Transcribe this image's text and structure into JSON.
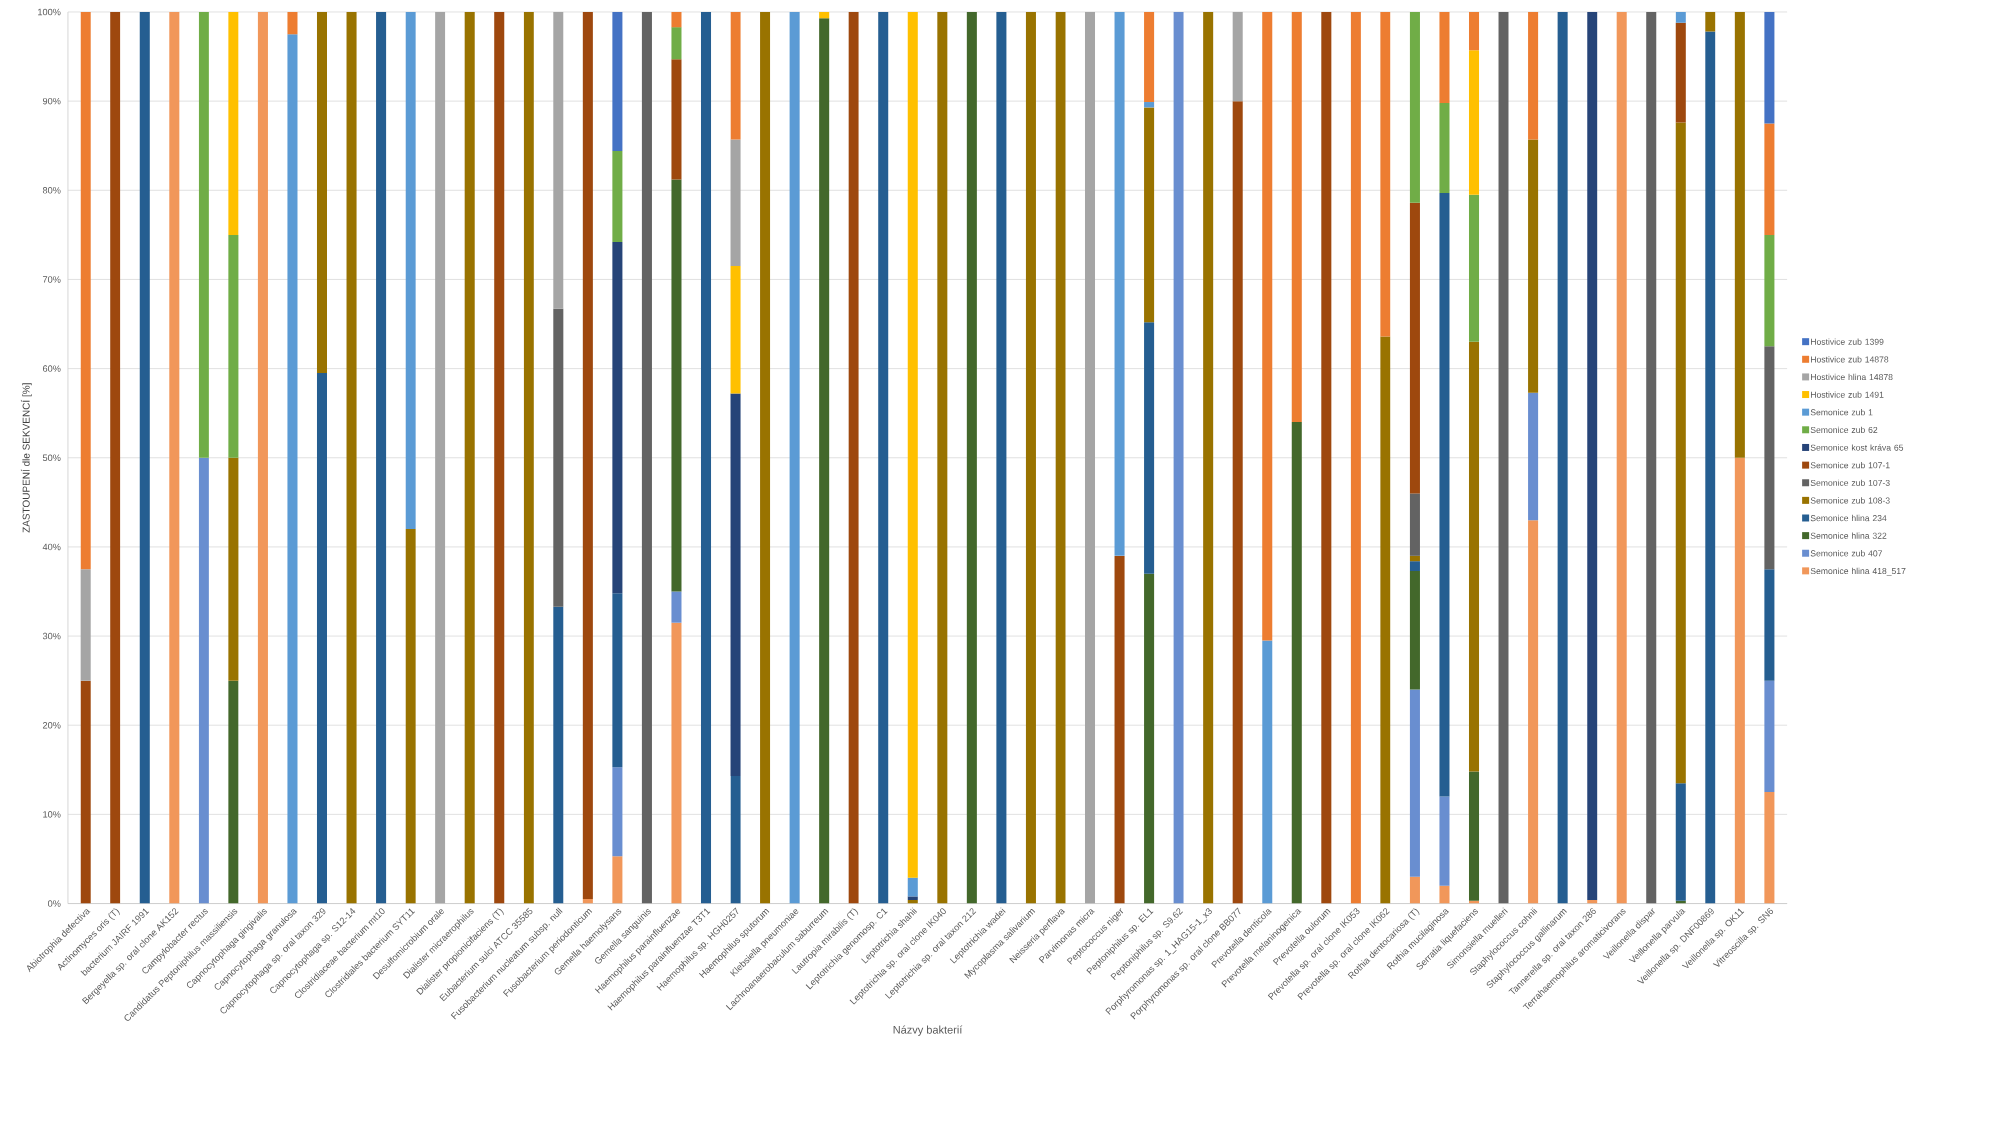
{
  "chart_data": {
    "type": "bar",
    "stacked": true,
    "xlabel": "Názvy bakterií",
    "ylabel": "ZASTOUPENÍ dle SEKVENCÍ [%]",
    "ylim": [
      0,
      100
    ],
    "yticks": [
      {
        "value": 0,
        "label": "0%"
      },
      {
        "value": 10,
        "label": "10%"
      },
      {
        "value": 20,
        "label": "20%"
      },
      {
        "value": 30,
        "label": "30%"
      },
      {
        "value": 40,
        "label": "40%"
      },
      {
        "value": 50,
        "label": "50%"
      },
      {
        "value": 60,
        "label": "60%"
      },
      {
        "value": 70,
        "label": "70%"
      },
      {
        "value": 80,
        "label": "80%"
      },
      {
        "value": 90,
        "label": "90%"
      },
      {
        "value": 100,
        "label": "100%"
      }
    ],
    "grid": "y",
    "legend": "right",
    "categories": [
      "Abiotrophia defectiva",
      "Actinomyces oris (T)",
      "bacterium JAIRF 1991",
      "Bergeyella sp. oral clone AK152",
      "Campylobacter rectus",
      "Candidatus Peptoniphilus massiliensis",
      "Capnocytophaga gingivalis",
      "Capnocytophaga granulosa",
      "Capnocytophaga sp. oral taxon 329",
      "Capnocytophaga sp. S12-14",
      "Clostridiaceae bacterium mt10",
      "Clostridiales bacterium SYT11",
      "Desulfomicrobium orale",
      "Dialister micraerophilus",
      "Dialister propionicifaciens (T)",
      "Eubacterium sulci ATCC 35585",
      "Fusobacterium nucleatum subsp. null",
      "Fusobacterium periodonticum",
      "Gemella haemolysans",
      "Gemella sanguinis",
      "Haemophilus parainfluenzae",
      "Haemophilus parainfluenzae T3T1",
      "Haemophilus sp. HGH0257",
      "Haemophilus sputorum",
      "Klebsiella pneumoniae",
      "Lachnoanaerobaculum saburreum",
      "Lautropia mirabilis (T)",
      "Leptotrichia genomosp. C1",
      "Leptotrichia shahii",
      "Leptotrichia sp. oral clone IK040",
      "Leptotrichia sp. oral taxon 212",
      "Leptotrichia wadei",
      "Mycoplasma salivarium",
      "Neisseria perflava",
      "Parvimonas micra",
      "Peptococcus niger",
      "Peptoniphilus sp. EL1",
      "Peptoniphilus sp. S9.62",
      "Porphyromonas sp. 1_HAG15-1_x3",
      "Porphyromonas sp. oral clone BB077",
      "Prevotella denticola",
      "Prevotella melaninogenica",
      "Prevotella oulorum",
      "Prevotella sp. oral clone IK053",
      "Prevotella sp. oral clone IK062",
      "Rothia dentocariosa (T)",
      "Rothia mucilaginosa",
      "Serratia liquefaciens",
      "Simonsiella muelleri",
      "Staphylococcus cohnii",
      "Staphylococcus gallinarum",
      "Tannerella sp. oral taxon 286",
      "Terrahaemophilus aromaticivorans",
      "Veillonella dispar",
      "Veillonella parvula",
      "Veillonella sp. DNF00869",
      "Veillonella sp. OK11",
      "Vitreoscilla sp. SN6"
    ],
    "series": [
      {
        "name": "Semonice hlina 418_517",
        "color": "#f1975a",
        "values": [
          null,
          null,
          null,
          100,
          null,
          null,
          100,
          null,
          null,
          null,
          null,
          null,
          null,
          null,
          null,
          null,
          null,
          0.5,
          5.3,
          null,
          31.5,
          null,
          null,
          null,
          null,
          null,
          null,
          null,
          null,
          null,
          null,
          null,
          null,
          null,
          null,
          null,
          null,
          null,
          null,
          null,
          null,
          null,
          null,
          null,
          null,
          3,
          2,
          0.3,
          null,
          43,
          null,
          0.4,
          100,
          null,
          null,
          null,
          50,
          12.5
        ]
      },
      {
        "name": "Semonice zub 407",
        "color": "#698ed0",
        "values": [
          null,
          null,
          null,
          null,
          50,
          null,
          null,
          null,
          null,
          null,
          null,
          null,
          null,
          null,
          null,
          null,
          null,
          null,
          10,
          null,
          3.5,
          null,
          null,
          null,
          null,
          null,
          null,
          null,
          null,
          null,
          null,
          null,
          null,
          null,
          null,
          null,
          null,
          100,
          null,
          null,
          null,
          null,
          null,
          null,
          null,
          21,
          10,
          null,
          null,
          14.3,
          null,
          null,
          null,
          null,
          null,
          null,
          null,
          12.5
        ]
      },
      {
        "name": "Semonice hlina 322",
        "color": "#43682b",
        "values": [
          null,
          null,
          null,
          null,
          null,
          25,
          null,
          null,
          null,
          null,
          null,
          null,
          null,
          null,
          null,
          null,
          null,
          null,
          null,
          null,
          46.2,
          null,
          null,
          null,
          null,
          99.3,
          null,
          null,
          null,
          null,
          100,
          null,
          null,
          null,
          null,
          null,
          37,
          null,
          null,
          null,
          null,
          54,
          null,
          null,
          null,
          13.3,
          null,
          14.5,
          null,
          null,
          null,
          null,
          null,
          null,
          0.3,
          null,
          null,
          null
        ]
      },
      {
        "name": "Semonice hlina 234",
        "color": "#255e91",
        "values": [
          null,
          null,
          100,
          null,
          null,
          null,
          null,
          null,
          59.5,
          null,
          100,
          null,
          null,
          null,
          null,
          null,
          33.3,
          null,
          19.5,
          null,
          null,
          100,
          14.3,
          null,
          null,
          null,
          null,
          100,
          null,
          null,
          null,
          100,
          null,
          null,
          null,
          null,
          28.2,
          null,
          null,
          null,
          null,
          null,
          null,
          null,
          null,
          1.1,
          67.7,
          null,
          null,
          null,
          100,
          null,
          null,
          null,
          13.2,
          97.8,
          null,
          12.5
        ]
      },
      {
        "name": "Semonice zub 108-3",
        "color": "#997300",
        "values": [
          null,
          null,
          null,
          null,
          null,
          25,
          null,
          null,
          40.5,
          100,
          null,
          42,
          null,
          100,
          null,
          100,
          null,
          null,
          null,
          null,
          null,
          null,
          null,
          100,
          null,
          null,
          null,
          null,
          0.4,
          100,
          null,
          null,
          100,
          100,
          null,
          null,
          24.1,
          null,
          100,
          null,
          null,
          null,
          null,
          null,
          63.6,
          0.6,
          null,
          48.2,
          null,
          28.4,
          null,
          null,
          null,
          null,
          74.1,
          2.2,
          50,
          null
        ]
      },
      {
        "name": "Semonice zub 107-3",
        "color": "#636363",
        "values": [
          null,
          null,
          null,
          null,
          null,
          null,
          null,
          null,
          null,
          null,
          null,
          null,
          null,
          null,
          null,
          null,
          33.4,
          null,
          null,
          100,
          null,
          null,
          null,
          null,
          null,
          null,
          null,
          null,
          null,
          null,
          null,
          null,
          null,
          null,
          null,
          null,
          null,
          null,
          null,
          null,
          null,
          null,
          null,
          null,
          null,
          7,
          null,
          null,
          100,
          null,
          null,
          null,
          null,
          100,
          null,
          null,
          null,
          25
        ]
      },
      {
        "name": "Semonice zub 107-1",
        "color": "#9e480e",
        "values": [
          25,
          100,
          null,
          null,
          null,
          null,
          null,
          null,
          null,
          null,
          null,
          null,
          null,
          null,
          100,
          null,
          null,
          99.5,
          null,
          null,
          13.5,
          null,
          null,
          null,
          null,
          null,
          100,
          null,
          null,
          null,
          null,
          null,
          null,
          null,
          null,
          39,
          null,
          null,
          null,
          90,
          null,
          null,
          100,
          null,
          null,
          32.6,
          null,
          null,
          null,
          null,
          null,
          null,
          null,
          null,
          11.2,
          null,
          null,
          null
        ]
      },
      {
        "name": "Semonice kost kráva 65",
        "color": "#264478",
        "values": [
          null,
          null,
          null,
          null,
          null,
          null,
          null,
          null,
          null,
          null,
          null,
          null,
          null,
          null,
          null,
          null,
          null,
          null,
          39.4,
          null,
          null,
          null,
          42.9,
          null,
          null,
          null,
          null,
          null,
          0.4,
          null,
          null,
          null,
          null,
          null,
          null,
          null,
          null,
          null,
          null,
          null,
          null,
          null,
          null,
          null,
          null,
          null,
          null,
          null,
          null,
          null,
          null,
          99.6,
          null,
          null,
          null,
          null,
          null,
          null
        ]
      },
      {
        "name": "Semonice zub 62",
        "color": "#70ad47",
        "values": [
          null,
          null,
          null,
          null,
          50,
          25,
          null,
          null,
          null,
          null,
          null,
          null,
          null,
          null,
          null,
          null,
          null,
          null,
          10.2,
          null,
          3.6,
          null,
          null,
          null,
          null,
          null,
          null,
          null,
          null,
          null,
          null,
          null,
          null,
          null,
          null,
          null,
          null,
          null,
          null,
          null,
          null,
          null,
          null,
          null,
          null,
          21.4,
          10.1,
          16.5,
          null,
          null,
          null,
          null,
          null,
          null,
          null,
          null,
          null,
          12.5
        ]
      },
      {
        "name": "Semonice zub 1",
        "color": "#5b9bd5",
        "values": [
          null,
          null,
          null,
          null,
          null,
          null,
          null,
          97.5,
          null,
          null,
          null,
          58,
          null,
          null,
          null,
          null,
          null,
          null,
          null,
          null,
          null,
          null,
          null,
          null,
          100,
          null,
          null,
          null,
          2.1,
          null,
          null,
          null,
          null,
          null,
          null,
          61,
          0.6,
          null,
          null,
          null,
          29.5,
          null,
          null,
          null,
          null,
          null,
          null,
          null,
          null,
          null,
          null,
          null,
          null,
          null,
          1.2,
          null,
          null,
          null
        ]
      },
      {
        "name": "Hostivice zub 1491",
        "color": "#ffc000",
        "values": [
          null,
          null,
          null,
          null,
          null,
          25,
          null,
          null,
          null,
          null,
          null,
          null,
          null,
          null,
          null,
          null,
          null,
          null,
          null,
          null,
          null,
          null,
          14.3,
          null,
          null,
          0.7,
          null,
          null,
          97.1,
          null,
          null,
          null,
          null,
          null,
          null,
          null,
          null,
          null,
          null,
          null,
          null,
          null,
          null,
          null,
          null,
          null,
          null,
          16.2,
          null,
          null,
          null,
          null,
          null,
          null,
          null,
          null,
          null,
          null
        ]
      },
      {
        "name": "Hostivice hlina 14878",
        "color": "#a5a5a5",
        "values": [
          12.5,
          null,
          null,
          null,
          null,
          null,
          null,
          null,
          null,
          null,
          null,
          null,
          100,
          null,
          null,
          null,
          33.3,
          null,
          null,
          null,
          null,
          null,
          14.2,
          null,
          null,
          null,
          null,
          null,
          null,
          null,
          null,
          null,
          null,
          null,
          100,
          null,
          null,
          null,
          null,
          10,
          null,
          null,
          null,
          null,
          null,
          null,
          null,
          null,
          null,
          null,
          null,
          null,
          null,
          null,
          null,
          null,
          null,
          null
        ]
      },
      {
        "name": "Hostivice zub 14878",
        "color": "#ed7d31",
        "values": [
          62.5,
          null,
          null,
          null,
          null,
          null,
          null,
          2.5,
          null,
          null,
          null,
          null,
          null,
          null,
          null,
          null,
          null,
          null,
          null,
          null,
          1.7,
          null,
          14.3,
          null,
          null,
          null,
          null,
          null,
          null,
          null,
          null,
          null,
          null,
          null,
          null,
          null,
          10.1,
          null,
          null,
          null,
          70.5,
          46,
          null,
          100,
          36.4,
          null,
          10.2,
          4.3,
          null,
          14.3,
          null,
          null,
          null,
          null,
          null,
          null,
          null,
          12.5
        ]
      },
      {
        "name": "Hostivice zub 1399",
        "color": "#4472c4",
        "values": [
          null,
          null,
          null,
          null,
          null,
          null,
          null,
          null,
          null,
          null,
          null,
          null,
          null,
          null,
          null,
          null,
          null,
          null,
          15.6,
          null,
          null,
          null,
          null,
          null,
          null,
          null,
          null,
          null,
          null,
          null,
          null,
          null,
          null,
          null,
          null,
          null,
          null,
          null,
          null,
          null,
          null,
          null,
          null,
          null,
          null,
          null,
          null,
          null,
          null,
          null,
          null,
          null,
          null,
          null,
          null,
          null,
          null,
          12.5
        ]
      }
    ]
  }
}
